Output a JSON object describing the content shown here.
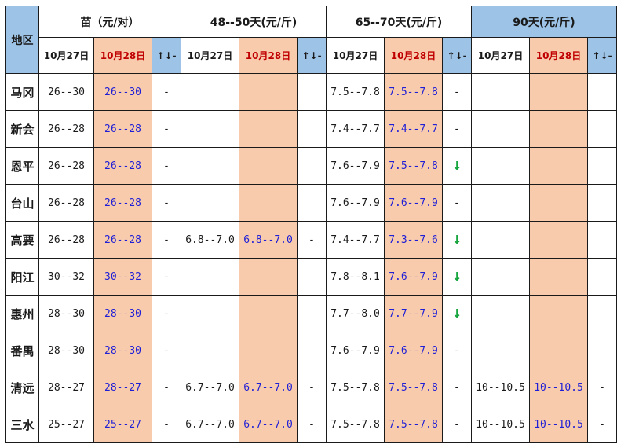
{
  "header": {
    "region": "地区",
    "groups": [
      {
        "label": "苗（元/对）"
      },
      {
        "label": "48--50天(元/斤)"
      },
      {
        "label": "65--70天(元/斤)"
      },
      {
        "label": "90天(元/斤)"
      }
    ],
    "date_prev": "10月27日",
    "date_cur": "10月28日",
    "trend": "↑↓-"
  },
  "rows": [
    {
      "region": "马冈",
      "g": [
        [
          "26--30",
          "26--30",
          "-"
        ],
        [
          "",
          "",
          ""
        ],
        [
          "7.5--7.8",
          "7.5--7.8",
          "-"
        ],
        [
          "",
          "",
          ""
        ]
      ]
    },
    {
      "region": "新会",
      "g": [
        [
          "26--28",
          "26--28",
          "-"
        ],
        [
          "",
          "",
          ""
        ],
        [
          "7.4--7.7",
          "7.4--7.7",
          "-"
        ],
        [
          "",
          "",
          ""
        ]
      ]
    },
    {
      "region": "恩平",
      "g": [
        [
          "26--28",
          "26--28",
          "-"
        ],
        [
          "",
          "",
          ""
        ],
        [
          "7.6--7.9",
          "7.5--7.8",
          "↓"
        ],
        [
          "",
          "",
          ""
        ]
      ]
    },
    {
      "region": "台山",
      "g": [
        [
          "26--28",
          "26--28",
          "-"
        ],
        [
          "",
          "",
          ""
        ],
        [
          "7.6--7.9",
          "7.6--7.9",
          "-"
        ],
        [
          "",
          "",
          ""
        ]
      ]
    },
    {
      "region": "高要",
      "g": [
        [
          "26--28",
          "26--28",
          "-"
        ],
        [
          "6.8--7.0",
          "6.8--7.0",
          "-"
        ],
        [
          "7.4--7.7",
          "7.3--7.6",
          "↓"
        ],
        [
          "",
          "",
          ""
        ]
      ]
    },
    {
      "region": "阳江",
      "g": [
        [
          "30--32",
          "30--32",
          "-"
        ],
        [
          "",
          "",
          ""
        ],
        [
          "7.8--8.1",
          "7.6--7.9",
          "↓"
        ],
        [
          "",
          "",
          ""
        ]
      ]
    },
    {
      "region": "惠州",
      "g": [
        [
          "28--30",
          "28--30",
          "-"
        ],
        [
          "",
          "",
          ""
        ],
        [
          "7.7--8.0",
          "7.7--7.9",
          "↓"
        ],
        [
          "",
          "",
          ""
        ]
      ]
    },
    {
      "region": "番禺",
      "g": [
        [
          "28--30",
          "28--30",
          "-"
        ],
        [
          "",
          "",
          ""
        ],
        [
          "7.6--7.9",
          "7.6--7.9",
          "-"
        ],
        [
          "",
          "",
          ""
        ]
      ]
    },
    {
      "region": "清远",
      "g": [
        [
          "28--27",
          "28--27",
          "-"
        ],
        [
          "6.7--7.0",
          "6.7--7.0",
          "-"
        ],
        [
          "7.5--7.8",
          "7.5--7.8",
          "-"
        ],
        [
          "10--10.5",
          "10--10.5",
          "-"
        ]
      ]
    },
    {
      "region": "三水",
      "g": [
        [
          "25--27",
          "25--27",
          "-"
        ],
        [
          "6.7--7.0",
          "6.7--7.0",
          "-"
        ],
        [
          "7.5--7.8",
          "7.5--7.8",
          "-"
        ],
        [
          "10--10.5",
          "10--10.5",
          "-"
        ]
      ]
    }
  ],
  "colors": {
    "today_fill": "#f8cbad",
    "header_blue": "#9dc3e6",
    "today_text": "#1f1fd6",
    "date_red": "#c00000",
    "down_arrow": "#12a33a"
  }
}
